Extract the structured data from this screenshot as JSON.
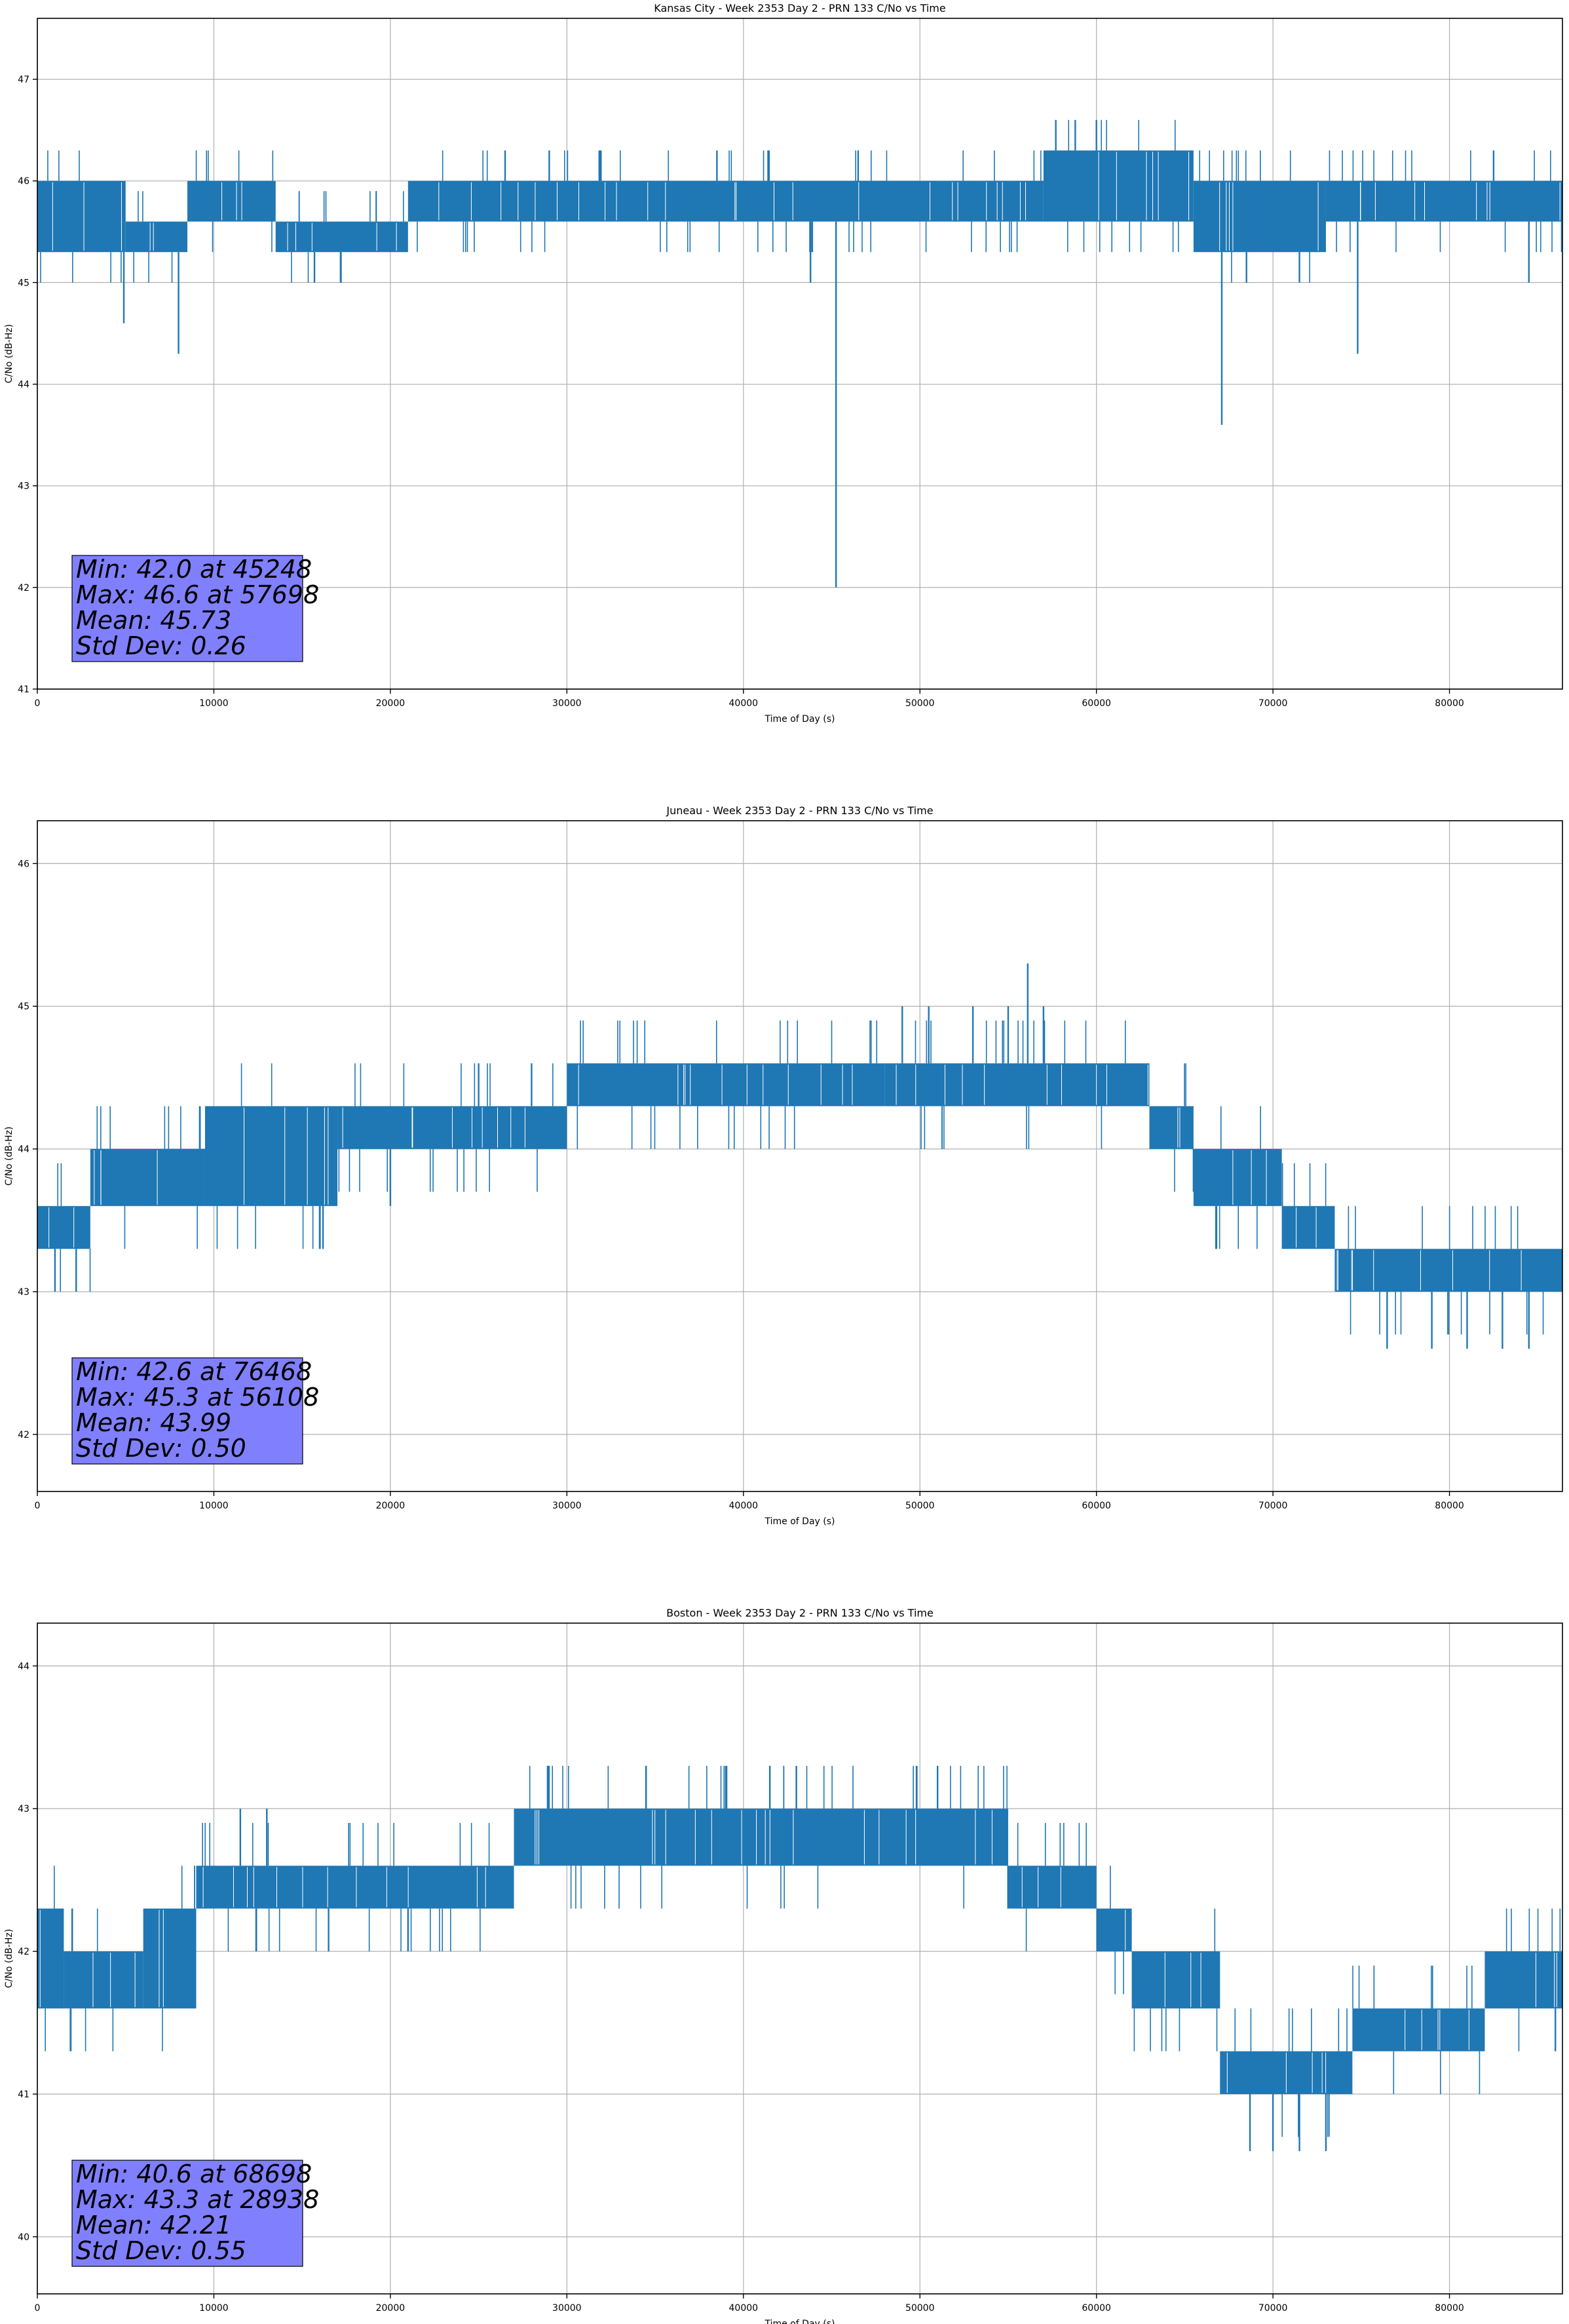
{
  "chart_data": [
    {
      "type": "line",
      "title": "Kansas City - Week 2353 Day 2 - PRN 133 C/No vs Time",
      "xlabel": "Time of Day (s)",
      "ylabel": "C/No (dB-Hz)",
      "xlim": [
        0,
        86400
      ],
      "ylim": [
        41,
        47.6
      ],
      "xticks": [
        0,
        10000,
        20000,
        30000,
        40000,
        50000,
        60000,
        70000,
        80000
      ],
      "yticks": [
        41,
        42,
        43,
        44,
        45,
        46,
        47
      ],
      "grid": true,
      "color": "#1f77b4",
      "series_name": "PRN 133 C/No",
      "bands": [
        {
          "x": [
            0,
            5000
          ],
          "lo": 45.3,
          "hi": 46.0
        },
        {
          "x": [
            5000,
            8500
          ],
          "lo": 45.3,
          "hi": 45.6
        },
        {
          "x": [
            8500,
            13500
          ],
          "lo": 45.6,
          "hi": 46.0
        },
        {
          "x": [
            13500,
            21000
          ],
          "lo": 45.3,
          "hi": 45.6
        },
        {
          "x": [
            21000,
            57000
          ],
          "lo": 45.6,
          "hi": 46.0
        },
        {
          "x": [
            57000,
            65500
          ],
          "lo": 45.6,
          "hi": 46.3
        },
        {
          "x": [
            65500,
            73000
          ],
          "lo": 45.3,
          "hi": 46.0
        },
        {
          "x": [
            73000,
            86400
          ],
          "lo": 45.6,
          "hi": 46.0
        }
      ],
      "spikes": [
        {
          "x": 45248,
          "y": 42.0
        },
        {
          "x": 67100,
          "y": 43.6
        },
        {
          "x": 74800,
          "y": 44.3
        },
        {
          "x": 8000,
          "y": 44.3
        },
        {
          "x": 4900,
          "y": 44.6
        },
        {
          "x": 57698,
          "y": 46.6
        },
        {
          "x": 58800,
          "y": 46.6
        },
        {
          "x": 60000,
          "y": 46.6
        },
        {
          "x": 26500,
          "y": 46.3
        },
        {
          "x": 29000,
          "y": 46.3
        },
        {
          "x": 38500,
          "y": 46.3
        },
        {
          "x": 46500,
          "y": 46.3
        },
        {
          "x": 82500,
          "y": 46.3
        },
        {
          "x": 15700,
          "y": 45.0
        },
        {
          "x": 17200,
          "y": 45.0
        },
        {
          "x": 43800,
          "y": 45.0
        },
        {
          "x": 68500,
          "y": 45.0
        },
        {
          "x": 71500,
          "y": 45.0
        },
        {
          "x": 84500,
          "y": 45.0
        }
      ],
      "stats": {
        "min": "Min: 42.0 at 45248",
        "max": "Max: 46.6 at 57698",
        "mean": "Mean: 45.73",
        "std": "Std Dev: 0.26"
      }
    },
    {
      "type": "line",
      "title": "Juneau - Week 2353 Day 2 - PRN 133 C/No vs Time",
      "xlabel": "Time of Day (s)",
      "ylabel": "C/No (dB-Hz)",
      "xlim": [
        0,
        86400
      ],
      "ylim": [
        41.6,
        46.3
      ],
      "xticks": [
        0,
        10000,
        20000,
        30000,
        40000,
        50000,
        60000,
        70000,
        80000
      ],
      "yticks": [
        42,
        43,
        44,
        45,
        46
      ],
      "grid": true,
      "color": "#1f77b4",
      "series_name": "PRN 133 C/No",
      "bands": [
        {
          "x": [
            0,
            3000
          ],
          "lo": 43.3,
          "hi": 43.6
        },
        {
          "x": [
            3000,
            9500
          ],
          "lo": 43.6,
          "hi": 44.0
        },
        {
          "x": [
            9500,
            17000
          ],
          "lo": 43.6,
          "hi": 44.3
        },
        {
          "x": [
            17000,
            30000
          ],
          "lo": 44.0,
          "hi": 44.3
        },
        {
          "x": [
            30000,
            48000
          ],
          "lo": 44.3,
          "hi": 44.6
        },
        {
          "x": [
            48000,
            63000
          ],
          "lo": 44.3,
          "hi": 44.6
        },
        {
          "x": [
            63000,
            65500
          ],
          "lo": 44.0,
          "hi": 44.3
        },
        {
          "x": [
            65500,
            70500
          ],
          "lo": 43.6,
          "hi": 44.0
        },
        {
          "x": [
            70500,
            73500
          ],
          "lo": 43.3,
          "hi": 43.6
        },
        {
          "x": [
            73500,
            86400
          ],
          "lo": 43.0,
          "hi": 43.3
        }
      ],
      "spikes": [
        {
          "x": 56108,
          "y": 45.3
        },
        {
          "x": 49000,
          "y": 45.0
        },
        {
          "x": 50500,
          "y": 45.0
        },
        {
          "x": 53000,
          "y": 45.0
        },
        {
          "x": 55000,
          "y": 45.0
        },
        {
          "x": 57000,
          "y": 45.0
        },
        {
          "x": 76468,
          "y": 42.6
        },
        {
          "x": 79000,
          "y": 42.6
        },
        {
          "x": 81000,
          "y": 42.6
        },
        {
          "x": 83000,
          "y": 42.6
        },
        {
          "x": 84500,
          "y": 42.6
        },
        {
          "x": 1000,
          "y": 43.0
        },
        {
          "x": 2200,
          "y": 43.0
        },
        {
          "x": 20000,
          "y": 43.6
        },
        {
          "x": 25000,
          "y": 44.6
        },
        {
          "x": 28000,
          "y": 44.6
        }
      ],
      "stats": {
        "min": "Min: 42.6 at 76468",
        "max": "Max: 45.3 at 56108",
        "mean": "Mean: 43.99",
        "std": "Std Dev: 0.50"
      }
    },
    {
      "type": "line",
      "title": "Boston - Week 2353 Day 2 - PRN 133 C/No vs Time",
      "xlabel": "Time of Day (s)",
      "ylabel": "C/No (dB-Hz)",
      "xlim": [
        0,
        86400
      ],
      "ylim": [
        39.6,
        44.3
      ],
      "xticks": [
        0,
        10000,
        20000,
        30000,
        40000,
        50000,
        60000,
        70000,
        80000
      ],
      "yticks": [
        40,
        41,
        42,
        43,
        44
      ],
      "grid": true,
      "color": "#1f77b4",
      "series_name": "PRN 133 C/No",
      "bands": [
        {
          "x": [
            0,
            1500
          ],
          "lo": 41.6,
          "hi": 42.3
        },
        {
          "x": [
            1500,
            6000
          ],
          "lo": 41.6,
          "hi": 42.0
        },
        {
          "x": [
            6000,
            9000
          ],
          "lo": 41.6,
          "hi": 42.3
        },
        {
          "x": [
            9000,
            27000
          ],
          "lo": 42.3,
          "hi": 42.6
        },
        {
          "x": [
            27000,
            55000
          ],
          "lo": 42.6,
          "hi": 43.0
        },
        {
          "x": [
            55000,
            60000
          ],
          "lo": 42.3,
          "hi": 42.6
        },
        {
          "x": [
            60000,
            62000
          ],
          "lo": 42.0,
          "hi": 42.3
        },
        {
          "x": [
            62000,
            67000
          ],
          "lo": 41.6,
          "hi": 42.0
        },
        {
          "x": [
            67000,
            74500
          ],
          "lo": 41.0,
          "hi": 41.3
        },
        {
          "x": [
            74500,
            82000
          ],
          "lo": 41.3,
          "hi": 41.6
        },
        {
          "x": [
            82000,
            86400
          ],
          "lo": 41.6,
          "hi": 42.0
        }
      ],
      "spikes": [
        {
          "x": 68698,
          "y": 40.6
        },
        {
          "x": 70000,
          "y": 40.6
        },
        {
          "x": 71500,
          "y": 40.6
        },
        {
          "x": 73000,
          "y": 40.6
        },
        {
          "x": 28938,
          "y": 43.3
        },
        {
          "x": 39000,
          "y": 43.3
        },
        {
          "x": 41500,
          "y": 43.3
        },
        {
          "x": 43000,
          "y": 43.3
        },
        {
          "x": 51000,
          "y": 43.3
        },
        {
          "x": 11500,
          "y": 43.0
        },
        {
          "x": 13000,
          "y": 43.0
        },
        {
          "x": 16500,
          "y": 42.0
        },
        {
          "x": 21000,
          "y": 42.0
        },
        {
          "x": 86000,
          "y": 41.3
        }
      ],
      "stats": {
        "min": "Min: 40.6 at 68698",
        "max": "Max: 43.3 at 28938",
        "mean": "Mean: 42.21",
        "std": "Std Dev: 0.55"
      }
    }
  ]
}
